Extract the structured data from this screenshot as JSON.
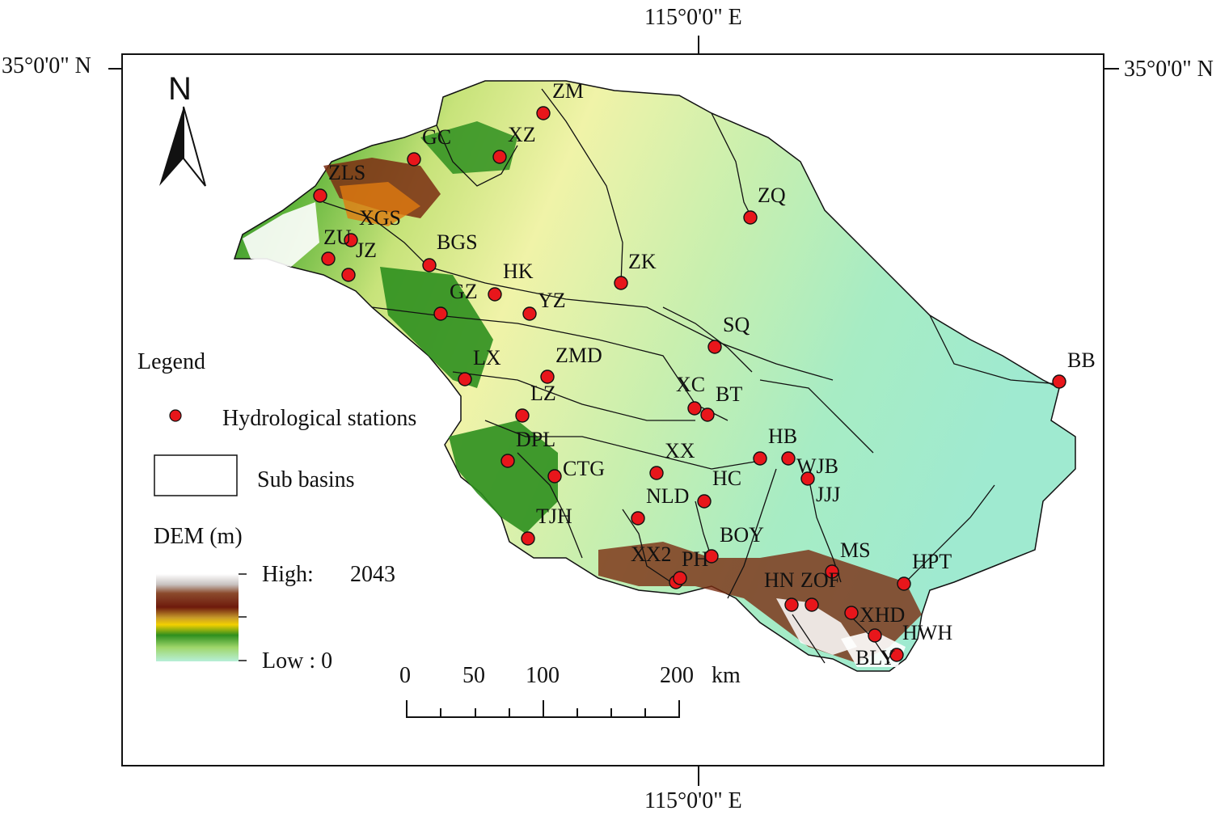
{
  "graticule": {
    "top_lon": "115°0'0\" E",
    "bottom_lon": "115°0'0\" E",
    "left_lat": "35°0'0\" N",
    "right_lat": "35°0'0\" N"
  },
  "north_arrow": {
    "label": "N"
  },
  "legend": {
    "title": "Legend",
    "stations_label": "Hydrological stations",
    "subbasins_label": "Sub basins",
    "dem_title": "DEM (m)",
    "high_label": "High:",
    "high_value": "2043",
    "low_label": "Low : 0"
  },
  "scale_bar": {
    "ticks": [
      "0",
      "50",
      "100",
      "200"
    ],
    "unit": "km"
  },
  "stations": [
    "ZM",
    "XZ",
    "GC",
    "ZLS",
    "XGS",
    "ZU",
    "JZ",
    "BGS",
    "HK",
    "GZ",
    "YZ",
    "ZK",
    "ZQ",
    "SQ",
    "LX",
    "ZMD",
    "XC",
    "BT",
    "LZ",
    "BB",
    "DPL",
    "HB",
    "XX",
    "CTG",
    "WJB",
    "HC",
    "JJJ",
    "NLD",
    "TJH",
    "BOY",
    "MS",
    "XX2",
    "PH",
    "HPT",
    "HN",
    "ZOF",
    "XHD",
    "HWH",
    "BLY"
  ],
  "colors": {
    "station_fill": "#e8161b",
    "basin_line": "#111111"
  }
}
